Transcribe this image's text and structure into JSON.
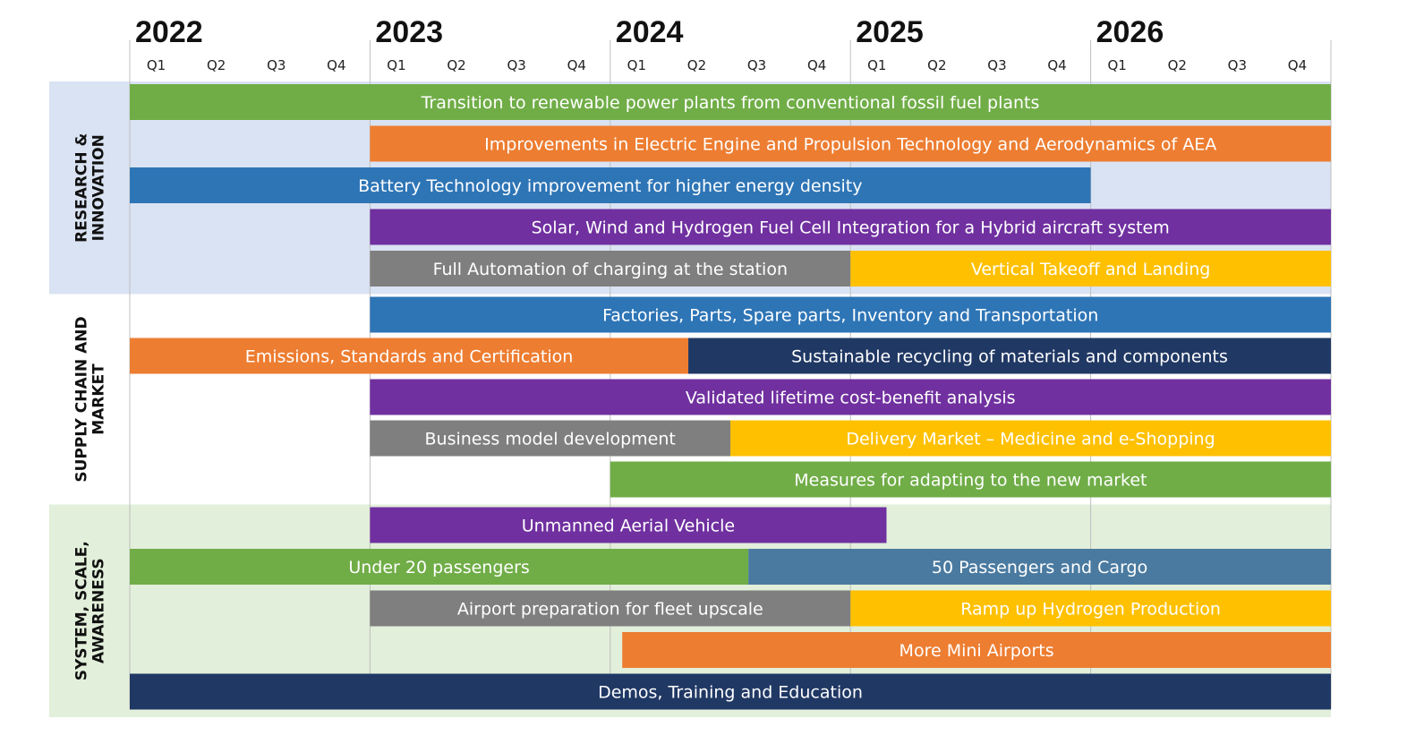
{
  "chart_data": {
    "type": "gantt",
    "years": [
      "2022",
      "2023",
      "2024",
      "2025",
      "2026"
    ],
    "quarters": [
      "Q1",
      "Q2",
      "Q3",
      "Q4"
    ],
    "colors": {
      "green": "#70AD47",
      "orange": "#ED7D31",
      "blue": "#2E75B6",
      "purple": "#7030A0",
      "gray": "#7F7F7F",
      "yellow": "#FFC000",
      "navy": "#203864",
      "steel": "#4A7AA0"
    },
    "sections": [
      {
        "id": "research",
        "label": "RESEARCH & INNOVATION",
        "label_lines": [
          "RESEARCH &",
          "INNOVATION"
        ],
        "background": "#DAE3F3",
        "rows": [
          [
            {
              "task": "Transition to renewable power plants from conventional fossil fuel plants",
              "start": 0,
              "end": 20,
              "color": "green"
            }
          ],
          [
            {
              "task": "Improvements in Electric Engine and Propulsion Technology and Aerodynamics of AEA",
              "start": 4,
              "end": 20,
              "color": "orange"
            }
          ],
          [
            {
              "task": "Battery Technology improvement for higher energy density",
              "start": 0,
              "end": 16,
              "color": "blue"
            }
          ],
          [
            {
              "task": "Solar, Wind and Hydrogen Fuel Cell Integration for a Hybrid aircraft system",
              "start": 4,
              "end": 20,
              "color": "purple"
            }
          ],
          [
            {
              "task": "Full Automation of charging at the station",
              "start": 4,
              "end": 12,
              "color": "gray"
            },
            {
              "task": "Vertical Takeoff and Landing",
              "start": 12,
              "end": 20,
              "color": "yellow"
            }
          ]
        ]
      },
      {
        "id": "supply",
        "label": "SUPPLY CHAIN AND MARKET",
        "label_lines": [
          "SUPPLY CHAIN AND",
          "MARKET"
        ],
        "background": "#FFFFFF",
        "rows": [
          [
            {
              "task": "Factories, Parts, Spare parts, Inventory and Transportation",
              "start": 4,
              "end": 20,
              "color": "blue"
            }
          ],
          [
            {
              "task": "Emissions, Standards and Certification",
              "start": 0,
              "end": 9.3,
              "color": "orange"
            },
            {
              "task": "Sustainable recycling of materials and components",
              "start": 9.3,
              "end": 20,
              "color": "navy"
            }
          ],
          [
            {
              "task": "Validated lifetime cost-benefit analysis",
              "start": 4,
              "end": 20,
              "color": "purple"
            }
          ],
          [
            {
              "task": "Business model development",
              "start": 4,
              "end": 10,
              "color": "gray"
            },
            {
              "task": "Delivery Market – Medicine and e-Shopping",
              "start": 10,
              "end": 20,
              "color": "yellow"
            }
          ],
          [
            {
              "task": "Measures for adapting to the new market",
              "start": 8,
              "end": 20,
              "color": "green"
            }
          ]
        ]
      },
      {
        "id": "system",
        "label": "SYSTEM, SCALE, AWARENESS",
        "label_lines": [
          "SYSTEM, SCALE,",
          "AWARENESS"
        ],
        "background": "#E2EFDA",
        "rows": [
          [
            {
              "task": "Unmanned Aerial Vehicle",
              "start": 4,
              "end": 12.6,
              "color": "purple"
            }
          ],
          [
            {
              "task": "Under 20 passengers",
              "start": 0,
              "end": 10.3,
              "color": "green"
            },
            {
              "task": "50 Passengers and Cargo",
              "start": 10.3,
              "end": 20,
              "color": "steel"
            }
          ],
          [
            {
              "task": "Airport preparation for fleet upscale",
              "start": 4,
              "end": 12,
              "color": "gray"
            },
            {
              "task": "Ramp up Hydrogen Production",
              "start": 12,
              "end": 20,
              "color": "yellow"
            }
          ],
          [
            {
              "task": "More Mini Airports",
              "start": 8.2,
              "end": 20,
              "color": "orange"
            }
          ],
          [
            {
              "task": "Demos, Training and Education",
              "start": 0,
              "end": 20,
              "color": "navy"
            }
          ]
        ]
      }
    ]
  }
}
